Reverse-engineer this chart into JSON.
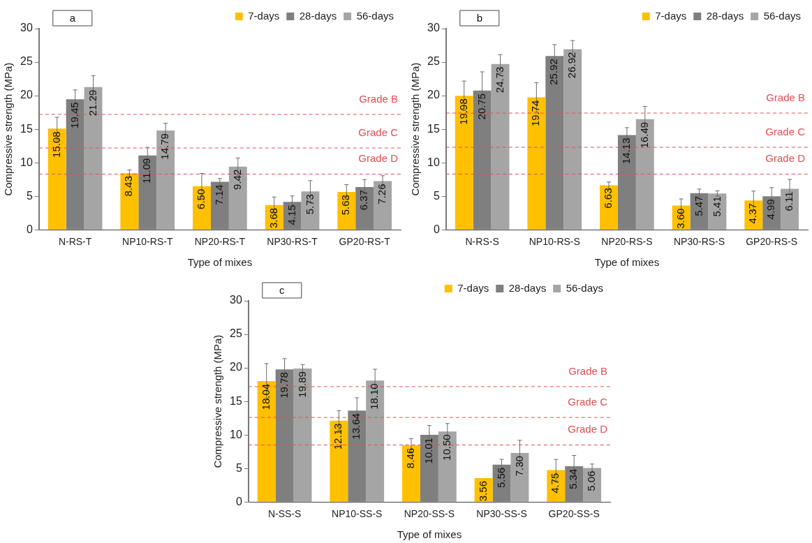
{
  "chart_data": [
    {
      "type": "bar",
      "annotations": [
        "a"
      ],
      "xlabel": "Type of mixes",
      "ylabel": "Compressive strength (MPa)",
      "categories": [
        "N-RS-T",
        "NP10-RS-T",
        "NP20-RS-T",
        "NP30-RS-T",
        "GP20-RS-T"
      ],
      "series": [
        {
          "name": "7-days",
          "color": "#ffc000",
          "values": [
            15.08,
            8.43,
            6.5,
            3.68,
            5.63
          ],
          "value_labels": [
            "15.08",
            "8.43",
            "6.50",
            "3.68",
            "5.63"
          ],
          "errors": [
            1.7,
            0.5,
            1.9,
            1.2,
            1.1
          ]
        },
        {
          "name": "28-days",
          "color": "#7f7f7f",
          "values": [
            19.45,
            11.09,
            7.14,
            4.15,
            6.37
          ],
          "value_labels": [
            "19.45",
            "11.09",
            "7.14",
            "4.15",
            "6.37"
          ],
          "errors": [
            1.4,
            1.2,
            0.5,
            0.9,
            1.1
          ]
        },
        {
          "name": "56-days",
          "color": "#a5a5a5",
          "values": [
            21.29,
            14.79,
            9.42,
            5.73,
            7.26
          ],
          "value_labels": [
            "21.29",
            "14.79",
            "9.42",
            "5.73",
            "7.26"
          ],
          "errors": [
            1.7,
            1.1,
            1.3,
            1.6,
            0.8
          ]
        }
      ],
      "ylim": [
        0,
        30
      ],
      "yticks": [
        0,
        5,
        10,
        15,
        20,
        25,
        30
      ],
      "grid": false,
      "legend": "top right",
      "ref_lines": [
        {
          "axis": "y",
          "value": 17.2,
          "label": "Grade B",
          "color": "#e05050",
          "line_style": "dashed"
        },
        {
          "axis": "y",
          "value": 12.2,
          "label": "Grade C",
          "color": "#e05050",
          "line_style": "dashed"
        },
        {
          "axis": "y",
          "value": 8.3,
          "label": "Grade D",
          "color": "#e05050",
          "line_style": "dashed"
        }
      ]
    },
    {
      "type": "bar",
      "annotations": [
        "b"
      ],
      "xlabel": "Type of mixes",
      "ylabel": "Compressive strength (MPa)",
      "categories": [
        "N-RS-S",
        "NP10-RS-S",
        "NP20-RS-S",
        "NP30-RS-S",
        "GP20-RS-S"
      ],
      "series": [
        {
          "name": "7-days",
          "color": "#ffc000",
          "values": [
            19.98,
            19.74,
            6.63,
            3.6,
            4.37
          ],
          "value_labels": [
            "19.98",
            "19.74",
            "6.63",
            "3.60",
            "4.37"
          ],
          "errors": [
            2.2,
            2.2,
            0.5,
            1.0,
            1.4
          ]
        },
        {
          "name": "28-days",
          "color": "#7f7f7f",
          "values": [
            20.75,
            25.92,
            14.13,
            5.47,
            4.99
          ],
          "value_labels": [
            "20.75",
            "25.92",
            "14.13",
            "5.47",
            "4.99"
          ],
          "errors": [
            2.8,
            1.7,
            1.1,
            0.6,
            1.3
          ]
        },
        {
          "name": "56-days",
          "color": "#a5a5a5",
          "values": [
            24.73,
            26.92,
            16.49,
            5.41,
            6.11
          ],
          "value_labels": [
            "24.73",
            "26.92",
            "16.49",
            "5.41",
            "6.11"
          ],
          "errors": [
            1.4,
            1.3,
            1.9,
            0.4,
            1.4
          ]
        }
      ],
      "ylim": [
        0,
        30
      ],
      "yticks": [
        0,
        5,
        10,
        15,
        20,
        25,
        30
      ],
      "grid": false,
      "legend": "top right",
      "ref_lines": [
        {
          "axis": "y",
          "value": 17.4,
          "label": "Grade B",
          "color": "#e05050",
          "line_style": "dashed"
        },
        {
          "axis": "y",
          "value": 12.3,
          "label": "Grade C",
          "color": "#e05050",
          "line_style": "dashed"
        },
        {
          "axis": "y",
          "value": 8.3,
          "label": "Grade D",
          "color": "#e05050",
          "line_style": "dashed"
        }
      ]
    },
    {
      "type": "bar",
      "annotations": [
        "c"
      ],
      "xlabel": "Type of mixes",
      "ylabel": "Compressive strength (MPa)",
      "categories": [
        "N-SS-S",
        "NP10-SS-S",
        "NP20-SS-S",
        "NP30-SS-S",
        "GP20-SS-S"
      ],
      "series": [
        {
          "name": "7-days",
          "color": "#ffc000",
          "values": [
            18.04,
            12.13,
            8.46,
            3.56,
            4.75
          ],
          "value_labels": [
            "18.04",
            "12.13",
            "8.46",
            "3.56",
            "4.75"
          ],
          "errors": [
            2.6,
            1.5,
            1.0,
            null,
            1.6
          ]
        },
        {
          "name": "28-days",
          "color": "#7f7f7f",
          "values": [
            19.78,
            13.64,
            10.01,
            5.56,
            5.34
          ],
          "value_labels": [
            "19.78",
            "13.64",
            "10.01",
            "5.56",
            "5.34"
          ],
          "errors": [
            1.6,
            1.9,
            1.4,
            0.8,
            1.6
          ]
        },
        {
          "name": "56-days",
          "color": "#a5a5a5",
          "values": [
            19.89,
            18.1,
            10.5,
            7.3,
            5.06
          ],
          "value_labels": [
            "19.89",
            "18.10",
            "10.50",
            "7.30",
            "5.06"
          ],
          "errors": [
            0.6,
            1.7,
            1.2,
            1.9,
            0.6
          ]
        }
      ],
      "ylim": [
        0,
        30
      ],
      "yticks": [
        0,
        5,
        10,
        15,
        20,
        25,
        30
      ],
      "grid": false,
      "legend": "top right",
      "ref_lines": [
        {
          "axis": "y",
          "value": 17.2,
          "label": "Grade B",
          "color": "#e05050",
          "line_style": "dashed"
        },
        {
          "axis": "y",
          "value": 12.6,
          "label": "Grade C",
          "color": "#e05050",
          "line_style": "dashed"
        },
        {
          "axis": "y",
          "value": 8.5,
          "label": "Grade D",
          "color": "#e05050",
          "line_style": "dashed"
        }
      ]
    }
  ]
}
